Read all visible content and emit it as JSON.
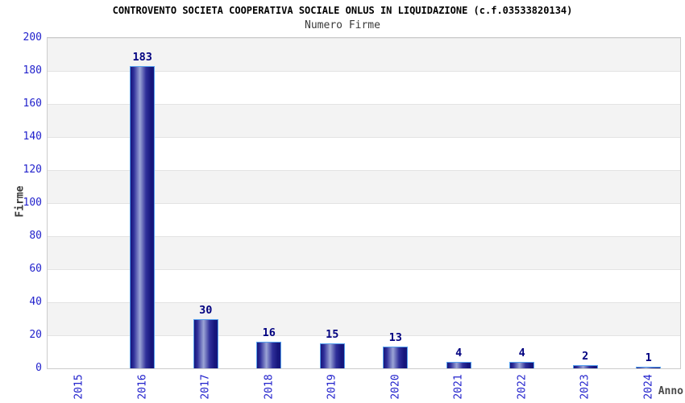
{
  "header": {
    "title": "CONTROVENTO SOCIETA COOPERATIVA SOCIALE ONLUS IN LIQUIDAZIONE (c.f.03533820134)",
    "subtitle": "Numero Firme"
  },
  "axes": {
    "y_label": "Firme",
    "x_label": "Anno"
  },
  "colors": {
    "tick_label": "#2222cc",
    "value_label": "#000080",
    "bar_dark": "#16167c",
    "bar_mid": "#30309a",
    "bar_light": "#9ba4d6",
    "bar_border": "#55a0ee",
    "band_gray": "#f3f3f3",
    "band_white": "#ffffff",
    "grid_line": "#e3e3e3",
    "plot_border": "#cccccc"
  },
  "chart_data": {
    "type": "bar",
    "title": "CONTROVENTO SOCIETA COOPERATIVA SOCIALE ONLUS IN LIQUIDAZIONE (c.f.03533820134)",
    "subtitle": "Numero Firme",
    "xlabel": "Anno",
    "ylabel": "Firme",
    "categories": [
      "2015",
      "2016",
      "2017",
      "2018",
      "2019",
      "2020",
      "2021",
      "2022",
      "2023",
      "2024"
    ],
    "values": [
      0,
      183,
      30,
      16,
      15,
      13,
      4,
      4,
      2,
      1
    ],
    "ylim": [
      0,
      200
    ],
    "ytick_step": 20,
    "yticks": [
      0,
      20,
      40,
      60,
      80,
      100,
      120,
      140,
      160,
      180,
      200
    ],
    "grid": "horizontal alternating bands every 20 units",
    "legend": "none",
    "bar_style": "vertical cylinder gradient blue",
    "value_labels_shown": true,
    "zero_values_hidden": true
  }
}
